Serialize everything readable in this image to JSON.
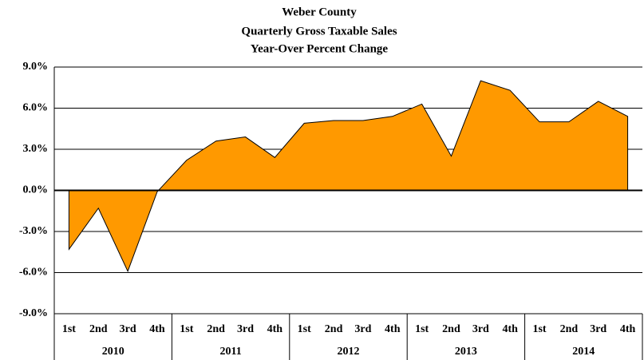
{
  "chart_data": {
    "type": "area",
    "title": [
      "Weber County",
      "Quarterly Gross Taxable Sales",
      "Year-Over Percent Change"
    ],
    "categories": [
      "1st",
      "2nd",
      "3rd",
      "4th",
      "1st",
      "2nd",
      "3rd",
      "4th",
      "1st",
      "2nd",
      "3rd",
      "4th",
      "1st",
      "2nd",
      "3rd",
      "4th",
      "1st",
      "2nd",
      "3rd",
      "4th"
    ],
    "category_groups": [
      "2010",
      "2011",
      "2012",
      "2013",
      "2014"
    ],
    "values": [
      -4.3,
      -1.3,
      -5.9,
      -0.1,
      2.2,
      3.6,
      3.9,
      2.4,
      4.9,
      5.1,
      5.1,
      5.4,
      6.3,
      2.5,
      8.0,
      7.3,
      5.0,
      5.0,
      6.5,
      5.4
    ],
    "color": "#ff9900",
    "ylim": [
      -9,
      9
    ],
    "yticks": [
      {
        "value": -9,
        "label": "-9.0%"
      },
      {
        "value": -6,
        "label": "-6.0%"
      },
      {
        "value": -3,
        "label": "-3.0%"
      },
      {
        "value": 0,
        "label": "0.0%"
      },
      {
        "value": 3,
        "label": "3.0%"
      },
      {
        "value": 6,
        "label": "6.0%"
      },
      {
        "value": 9,
        "label": "9.0%"
      }
    ],
    "grid": true
  }
}
